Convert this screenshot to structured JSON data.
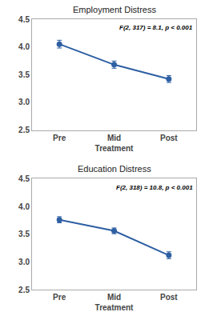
{
  "chart_data": [
    {
      "type": "line",
      "title": "Employment Distress",
      "annotation": "F(2, 317) = 8.1, p < 0.001",
      "categories": [
        "Pre",
        "Mid\nTreatment",
        "Post"
      ],
      "values": [
        4.05,
        3.68,
        3.42
      ],
      "errors": [
        0.07,
        0.065,
        0.062
      ],
      "ylim": [
        2.5,
        4.5
      ],
      "yticks": [
        2.5,
        {
          "value": 3,
          "label": "3.0"
        },
        3.5,
        {
          "value": 4,
          "label": "4.0"
        },
        4.5
      ],
      "color": "#2E5FA3",
      "marker": "circle",
      "grid": false
    },
    {
      "type": "line",
      "title": "Education Distress",
      "annotation": "F(2, 318) = 10.8, p < 0.001",
      "categories": [
        "Pre",
        "Mid\nTreatment",
        "Post"
      ],
      "values": [
        3.76,
        3.56,
        3.12
      ],
      "errors": [
        0.055,
        0.052,
        0.062
      ],
      "ylim": [
        2.5,
        4.5
      ],
      "yticks": [
        2.5,
        {
          "value": 3,
          "label": "3.0"
        },
        3.5,
        {
          "value": 4,
          "label": "4.0"
        },
        4.5
      ],
      "color": "#2E5FA3",
      "marker": "circle",
      "grid": false
    }
  ]
}
